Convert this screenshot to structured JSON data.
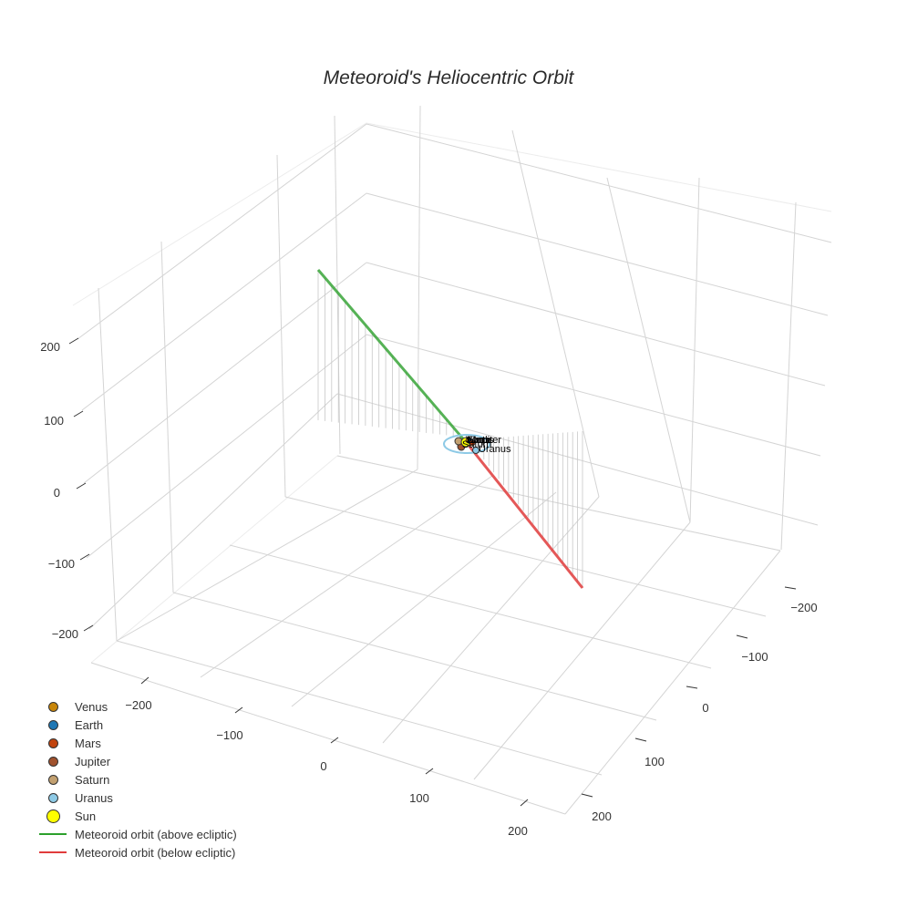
{
  "chart_data": {
    "type": "scatter3d",
    "title": "Meteoroid's Heliocentric Orbit",
    "axes": {
      "x": {
        "ticks": [
          -200,
          -100,
          0,
          100,
          200
        ],
        "range": [
          -250,
          250
        ]
      },
      "y": {
        "ticks": [
          -200,
          -100,
          0,
          100,
          200
        ],
        "range": [
          -250,
          250
        ]
      },
      "z": {
        "ticks": [
          -200,
          -100,
          0,
          100,
          200
        ],
        "range": [
          -250,
          250
        ]
      }
    },
    "grid": true,
    "legend_position": "bottom-left",
    "series": [
      {
        "name": "Venus",
        "type": "marker",
        "color": "#c8860a",
        "label": "Venus"
      },
      {
        "name": "Earth",
        "type": "marker",
        "color": "#1f77b4",
        "label": "Earth"
      },
      {
        "name": "Mars",
        "type": "marker",
        "color": "#c1440e",
        "label": "Mars"
      },
      {
        "name": "Jupiter",
        "type": "marker",
        "color": "#a0522d",
        "label": "Jupiter"
      },
      {
        "name": "Saturn",
        "type": "marker",
        "color": "#c2a070",
        "label": "Saturn"
      },
      {
        "name": "Uranus",
        "type": "marker",
        "color": "#8ecae6",
        "label": "Uranus"
      },
      {
        "name": "Sun",
        "type": "marker",
        "color": "#ffff00",
        "label": "Sun"
      },
      {
        "name": "Meteoroid orbit (above ecliptic)",
        "type": "line",
        "color": "#2ca02c",
        "from": [
          -220,
          230,
          180
        ],
        "to": [
          0,
          0,
          0
        ]
      },
      {
        "name": "Meteoroid orbit (below ecliptic)",
        "type": "line",
        "color": "#e03c3c",
        "from": [
          0,
          0,
          0
        ],
        "to": [
          230,
          -60,
          -180
        ]
      }
    ]
  },
  "title": "Meteoroid's Heliocentric Orbit",
  "z_ticks": [
    "200",
    "100",
    "0",
    "−100",
    "−200"
  ],
  "x_ticks": [
    "−200",
    "−100",
    "0",
    "100",
    "200"
  ],
  "y_ticks": [
    "−200",
    "−100",
    "0",
    "100",
    "200"
  ],
  "planet_labels": [
    "Venus",
    "Earth",
    "Mars",
    "Jupiter",
    "Saturn",
    "Uranus"
  ],
  "legend": [
    {
      "label": "Venus",
      "kind": "dot",
      "color": "#c8860a",
      "size": 9
    },
    {
      "label": "Earth",
      "kind": "dot",
      "color": "#1f77b4",
      "size": 9
    },
    {
      "label": "Mars",
      "kind": "dot",
      "color": "#c1440e",
      "size": 9
    },
    {
      "label": "Jupiter",
      "kind": "dot",
      "color": "#a0522d",
      "size": 9
    },
    {
      "label": "Saturn",
      "kind": "dot",
      "color": "#c2a070",
      "size": 9
    },
    {
      "label": "Uranus",
      "kind": "dot",
      "color": "#8ecae6",
      "size": 9
    },
    {
      "label": "Sun",
      "kind": "dot",
      "color": "#ffff00",
      "size": 13
    },
    {
      "label": "Meteoroid orbit (above ecliptic)",
      "kind": "line",
      "color": "#2ca02c"
    },
    {
      "label": "Meteoroid orbit (below ecliptic)",
      "kind": "line",
      "color": "#e03c3c"
    }
  ]
}
